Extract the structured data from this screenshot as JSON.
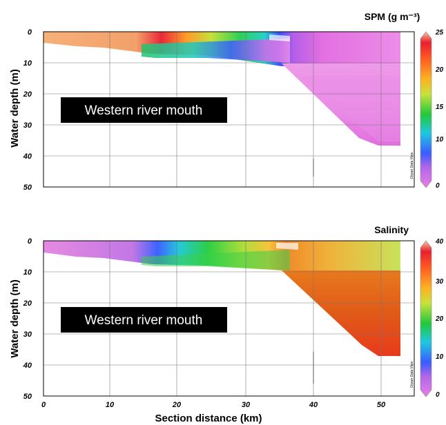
{
  "chart_data": [
    {
      "type": "heatmap",
      "title": "SPM (g m⁻³)",
      "xlabel": "",
      "ylabel": "Water depth (m)",
      "xlim": [
        0,
        55
      ],
      "ylim": [
        50,
        0
      ],
      "x_ticks": [
        "0",
        "10",
        "20",
        "30",
        "40",
        "50"
      ],
      "y_ticks": [
        "0",
        "10",
        "20",
        "30",
        "40",
        "50"
      ],
      "colorbar": {
        "min": 0,
        "max": 25,
        "ticks": [
          "25",
          "20",
          "15",
          "10",
          "5",
          "0"
        ]
      },
      "annotation": "Western river mouth",
      "watermark": "Ocean Data View"
    },
    {
      "type": "heatmap",
      "title": "Salinity",
      "xlabel": "Section distance (km)",
      "ylabel": "Water depth (m)",
      "xlim": [
        0,
        55
      ],
      "ylim": [
        50,
        0
      ],
      "x_ticks": [
        "0",
        "10",
        "20",
        "30",
        "40",
        "50"
      ],
      "y_ticks": [
        "0",
        "10",
        "20",
        "30",
        "40",
        "50"
      ],
      "colorbar": {
        "min": 0,
        "max": 40,
        "ticks": [
          "40",
          "30",
          "20",
          "10",
          "0"
        ]
      },
      "annotation": "Western river mouth",
      "watermark": "Ocean Data View"
    }
  ]
}
